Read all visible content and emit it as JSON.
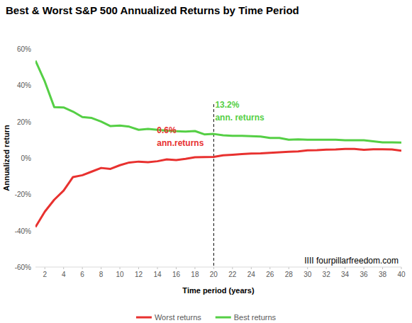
{
  "chart_data": {
    "type": "line",
    "title": "Best & Worst S&P 500 Annualized Returns by Time Period",
    "x_label": "Time period (years)",
    "y_label": "Annualized return",
    "x": [
      1,
      2,
      3,
      4,
      5,
      6,
      7,
      8,
      9,
      10,
      11,
      12,
      13,
      14,
      15,
      16,
      17,
      18,
      19,
      20,
      21,
      22,
      23,
      24,
      25,
      26,
      27,
      28,
      29,
      30,
      31,
      32,
      33,
      34,
      35,
      36,
      37,
      38,
      39,
      40
    ],
    "series": [
      {
        "name": "Worst returns",
        "color": "#e8312f",
        "values": [
          -38,
          -29.5,
          -23,
          -18,
          -10.5,
          -9.5,
          -7.5,
          -5.5,
          -6,
          -4,
          -2.5,
          -2,
          -2.3,
          -1.8,
          -0.8,
          -1.2,
          -0.5,
          0.4,
          0.5,
          0.6,
          1.5,
          1.8,
          2.1,
          2.4,
          2.5,
          2.8,
          3.1,
          3.4,
          3.6,
          4.2,
          4.3,
          4.6,
          4.7,
          5,
          5,
          4.5,
          4.8,
          4.8,
          4.7,
          4
        ]
      },
      {
        "name": "Best returns",
        "color": "#55cf45",
        "values": [
          53.5,
          42,
          28,
          27.8,
          25.5,
          22.5,
          22,
          20,
          17.5,
          17.8,
          17.2,
          15.5,
          16,
          15.5,
          15,
          14.7,
          14.5,
          14.8,
          13,
          13.2,
          12.5,
          12.2,
          12.2,
          12,
          11.8,
          11,
          11,
          10,
          10.2,
          10,
          10,
          10,
          10,
          9.7,
          9.7,
          9.7,
          9.2,
          8.6,
          8.6,
          8.5
        ]
      }
    ],
    "xlim": [
      1,
      40
    ],
    "xticks": [
      2,
      4,
      6,
      8,
      10,
      12,
      14,
      16,
      18,
      20,
      22,
      24,
      26,
      28,
      30,
      32,
      34,
      36,
      38,
      40
    ],
    "ylim": [
      -60,
      60
    ],
    "yticks": [
      {
        "value": -60,
        "label": "-60%"
      },
      {
        "value": -40,
        "label": "-40%"
      },
      {
        "value": -20,
        "label": "-20%"
      },
      {
        "value": 0,
        "label": "0%"
      },
      {
        "value": 20,
        "label": "20%"
      },
      {
        "value": 40,
        "label": "40%"
      },
      {
        "value": 60,
        "label": "60%"
      }
    ],
    "grid": false,
    "legend": "bottom",
    "vline": {
      "x": 20,
      "line_style": "dashed"
    },
    "annotations": [
      {
        "x": 20,
        "value": 13.2,
        "label": "13.2%",
        "text": "ann. returns",
        "color": "#55cf45"
      },
      {
        "x": 20,
        "value": 0.6,
        "label": "0.6%",
        "text": "ann.returns",
        "color": "#e8312f"
      }
    ],
    "source": "IIII fourpillarfreedom.com"
  }
}
